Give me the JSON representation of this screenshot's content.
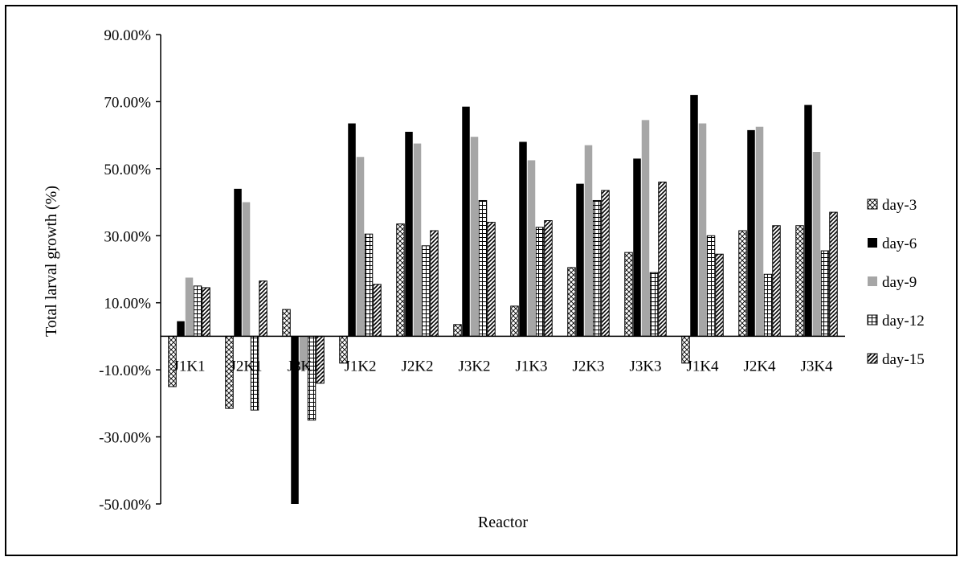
{
  "chart_data": {
    "type": "bar",
    "title": "",
    "xlabel": "Reactor",
    "ylabel": "Total larval  growth (%)",
    "ylim": [
      -50,
      90
    ],
    "yticks": [
      -50,
      -30,
      -10,
      10,
      30,
      50,
      70,
      90
    ],
    "ytick_labels": [
      "-50.00%",
      "-30.00%",
      "-10.00%",
      "10.00%",
      "30.00%",
      "50.00%",
      "70.00%",
      "90.00%"
    ],
    "grid": false,
    "legend_position": "right",
    "categories": [
      "J1K1",
      "J2K1",
      "J3K1",
      "J1K2",
      "J2K2",
      "J3K2",
      "J1K3",
      "J2K3",
      "J3K3",
      "J1K4",
      "J2K4",
      "J3K4"
    ],
    "series": [
      {
        "name": "day-3",
        "pattern": "cross-hatch",
        "color": "#000000",
        "values": [
          -15,
          -21.5,
          8,
          -8,
          33.5,
          3.5,
          9,
          20.5,
          25,
          -8,
          31.5,
          33
        ]
      },
      {
        "name": "day-6",
        "pattern": "solid-black",
        "color": "#000000",
        "values": [
          4.5,
          44,
          -50,
          63.5,
          61,
          68.5,
          58,
          45.5,
          53,
          72,
          61.5,
          69
        ]
      },
      {
        "name": "day-9",
        "pattern": "solid-gray",
        "color": "#a6a6a6",
        "values": [
          17.5,
          40,
          -10,
          53.5,
          57.5,
          59.5,
          52.5,
          57,
          64.5,
          63.5,
          62.5,
          55
        ]
      },
      {
        "name": "day-12",
        "pattern": "grid",
        "color": "#000000",
        "values": [
          15,
          -22,
          -25,
          30.5,
          27,
          40.5,
          32.5,
          40.5,
          19,
          30,
          18.5,
          25.5
        ]
      },
      {
        "name": "day-15",
        "pattern": "diagonal",
        "color": "#000000",
        "values": [
          14.5,
          16.5,
          -14,
          15.5,
          31.5,
          34,
          34.5,
          43.5,
          46,
          24.5,
          33,
          37
        ]
      }
    ]
  }
}
